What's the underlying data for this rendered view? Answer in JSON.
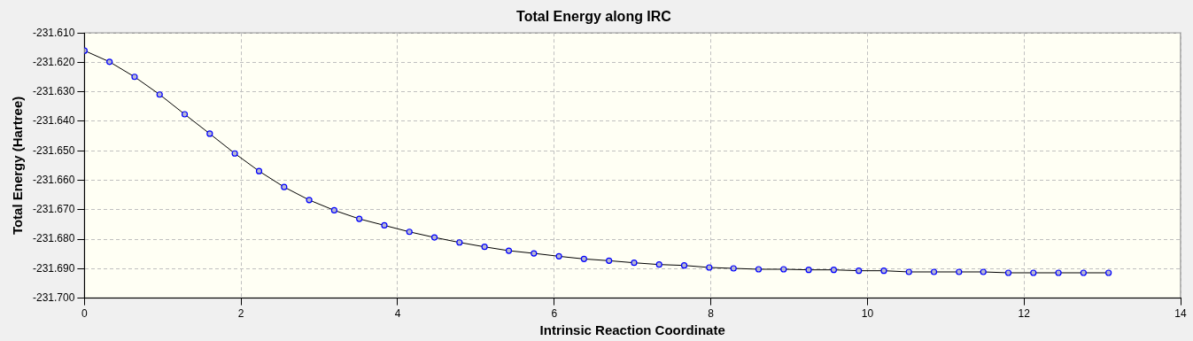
{
  "chart_data": {
    "type": "line",
    "title": "Total Energy along IRC",
    "xlabel": "Intrinsic Reaction Coordinate",
    "ylabel": "Total Energy (Hartree)",
    "x": [
      0,
      0.32,
      0.64,
      0.96,
      1.28,
      1.6,
      1.92,
      2.23,
      2.55,
      2.87,
      3.19,
      3.51,
      3.83,
      4.15,
      4.47,
      4.79,
      5.11,
      5.42,
      5.74,
      6.06,
      6.38,
      6.7,
      7.02,
      7.34,
      7.66,
      7.98,
      8.29,
      8.61,
      8.93,
      9.25,
      9.57,
      9.89,
      10.21,
      10.53,
      10.85,
      11.17,
      11.48,
      11.8,
      12.12,
      12.44,
      12.76,
      13.08
    ],
    "series": [
      {
        "color": "#0000ff",
        "values": [
          -231.616,
          -231.6198,
          -231.6249,
          -231.6309,
          -231.6376,
          -231.6442,
          -231.6509,
          -231.6569,
          -231.6623,
          -231.6667,
          -231.6702,
          -231.6731,
          -231.6753,
          -231.6775,
          -231.6794,
          -231.6811,
          -231.6826,
          -231.6839,
          -231.6848,
          -231.6858,
          -231.6867,
          -231.6873,
          -231.688,
          -231.6886,
          -231.6889,
          -231.6896,
          -231.6899,
          -231.6902,
          -231.6902,
          -231.6904,
          -231.6904,
          -231.6907,
          -231.6907,
          -231.6911,
          -231.6911,
          -231.6911,
          -231.6911,
          -231.6914,
          -231.6914,
          -231.6914,
          -231.6914,
          -231.6914
        ]
      }
    ],
    "xlim": [
      0,
      14
    ],
    "xticks": [
      0,
      2,
      4,
      6,
      8,
      10,
      12,
      14
    ],
    "ylim": [
      -231.7,
      -231.61
    ],
    "yticks": [
      {
        "value": -231.7,
        "label": "-231.700"
      },
      {
        "value": -231.69,
        "label": "-231.690"
      },
      {
        "value": -231.68,
        "label": "-231.680"
      },
      {
        "value": -231.67,
        "label": "-231.670"
      },
      {
        "value": -231.66,
        "label": "-231.660"
      },
      {
        "value": -231.65,
        "label": "-231.650"
      },
      {
        "value": -231.64,
        "label": "-231.640"
      },
      {
        "value": -231.63,
        "label": "-231.630"
      },
      {
        "value": -231.62,
        "label": "-231.620"
      },
      {
        "value": -231.61,
        "label": "-231.610"
      }
    ],
    "grid": true,
    "marker": "circle",
    "line_style": "solid"
  }
}
